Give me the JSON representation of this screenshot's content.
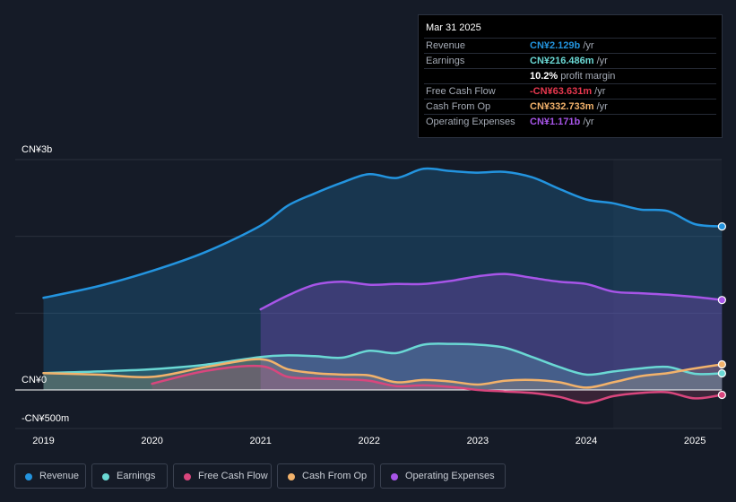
{
  "tooltip": {
    "date": "Mar 31 2025",
    "rows": [
      {
        "label": "Revenue",
        "value": "CN¥2.129b",
        "unit": "/yr",
        "color": "#2394df"
      },
      {
        "label": "Earnings",
        "value": "CN¥216.486m",
        "unit": "/yr",
        "color": "#6ad8d4"
      },
      {
        "label": "",
        "value": "10.2%",
        "unit": "profit margin",
        "color": "#ffffff"
      },
      {
        "label": "Free Cash Flow",
        "value": "-CN¥63.631m",
        "unit": "/yr",
        "color": "#e8384f"
      },
      {
        "label": "Cash From Op",
        "value": "CN¥332.733m",
        "unit": "/yr",
        "color": "#f2b26b"
      },
      {
        "label": "Operating Expenses",
        "value": "CN¥1.171b",
        "unit": "/yr",
        "color": "#a755e8"
      }
    ]
  },
  "legend": [
    {
      "label": "Revenue",
      "color": "#2394df"
    },
    {
      "label": "Earnings",
      "color": "#6ad8d4"
    },
    {
      "label": "Free Cash Flow",
      "color": "#d9467d"
    },
    {
      "label": "Cash From Op",
      "color": "#f2b26b"
    },
    {
      "label": "Operating Expenses",
      "color": "#a755e8"
    }
  ],
  "chart_data": {
    "type": "area",
    "title": "",
    "unit": "CN¥",
    "y_tick_labels": [
      "CN¥3b",
      "CN¥0",
      "-CN¥500m"
    ],
    "y_ticks": [
      3000,
      0,
      -500
    ],
    "ylim": [
      -500,
      3000
    ],
    "x_tick_labels": [
      "2019",
      "2020",
      "2021",
      "2022",
      "2023",
      "2024",
      "2025"
    ],
    "x_ticks": [
      2019,
      2020,
      2021,
      2022,
      2023,
      2024,
      2025
    ],
    "xlim": [
      2018.75,
      2025.25
    ],
    "forecast_start": 2024.25,
    "series": [
      {
        "name": "Revenue",
        "color": "#2394df",
        "points": [
          [
            2019.0,
            1200
          ],
          [
            2019.5,
            1350
          ],
          [
            2020.0,
            1550
          ],
          [
            2020.5,
            1800
          ],
          [
            2021.0,
            2140
          ],
          [
            2021.25,
            2400
          ],
          [
            2021.5,
            2560
          ],
          [
            2021.75,
            2700
          ],
          [
            2022.0,
            2810
          ],
          [
            2022.25,
            2760
          ],
          [
            2022.5,
            2880
          ],
          [
            2022.75,
            2850
          ],
          [
            2023.0,
            2830
          ],
          [
            2023.25,
            2840
          ],
          [
            2023.5,
            2770
          ],
          [
            2023.75,
            2620
          ],
          [
            2024.0,
            2480
          ],
          [
            2024.25,
            2430
          ],
          [
            2024.5,
            2350
          ],
          [
            2024.75,
            2330
          ],
          [
            2025.0,
            2160
          ],
          [
            2025.25,
            2129
          ]
        ]
      },
      {
        "name": "Operating Expenses",
        "color": "#a755e8",
        "points": [
          [
            2021.0,
            1050
          ],
          [
            2021.25,
            1230
          ],
          [
            2021.5,
            1370
          ],
          [
            2021.75,
            1410
          ],
          [
            2022.0,
            1370
          ],
          [
            2022.25,
            1380
          ],
          [
            2022.5,
            1380
          ],
          [
            2022.75,
            1420
          ],
          [
            2023.0,
            1480
          ],
          [
            2023.25,
            1510
          ],
          [
            2023.5,
            1460
          ],
          [
            2023.75,
            1410
          ],
          [
            2024.0,
            1380
          ],
          [
            2024.25,
            1280
          ],
          [
            2024.5,
            1260
          ],
          [
            2024.75,
            1240
          ],
          [
            2025.0,
            1210
          ],
          [
            2025.25,
            1171
          ]
        ]
      },
      {
        "name": "Earnings",
        "color": "#6ad8d4",
        "points": [
          [
            2019.0,
            220
          ],
          [
            2019.5,
            240
          ],
          [
            2020.0,
            270
          ],
          [
            2020.5,
            330
          ],
          [
            2021.0,
            430
          ],
          [
            2021.25,
            450
          ],
          [
            2021.5,
            440
          ],
          [
            2021.75,
            420
          ],
          [
            2022.0,
            510
          ],
          [
            2022.25,
            480
          ],
          [
            2022.5,
            590
          ],
          [
            2022.75,
            600
          ],
          [
            2023.0,
            590
          ],
          [
            2023.25,
            550
          ],
          [
            2023.5,
            430
          ],
          [
            2023.75,
            300
          ],
          [
            2024.0,
            200
          ],
          [
            2024.25,
            240
          ],
          [
            2024.5,
            280
          ],
          [
            2024.75,
            300
          ],
          [
            2025.0,
            210
          ],
          [
            2025.25,
            216
          ]
        ]
      },
      {
        "name": "Cash From Op",
        "color": "#f2b26b",
        "points": [
          [
            2019.0,
            220
          ],
          [
            2019.5,
            200
          ],
          [
            2020.0,
            170
          ],
          [
            2020.5,
            300
          ],
          [
            2021.0,
            400
          ],
          [
            2021.25,
            270
          ],
          [
            2021.5,
            220
          ],
          [
            2021.75,
            200
          ],
          [
            2022.0,
            190
          ],
          [
            2022.25,
            100
          ],
          [
            2022.5,
            130
          ],
          [
            2022.75,
            110
          ],
          [
            2023.0,
            70
          ],
          [
            2023.25,
            120
          ],
          [
            2023.5,
            130
          ],
          [
            2023.75,
            100
          ],
          [
            2024.0,
            30
          ],
          [
            2024.25,
            100
          ],
          [
            2024.5,
            180
          ],
          [
            2024.75,
            220
          ],
          [
            2025.0,
            280
          ],
          [
            2025.25,
            333
          ]
        ]
      },
      {
        "name": "Free Cash Flow",
        "color": "#d9467d",
        "points": [
          [
            2020.0,
            80
          ],
          [
            2020.5,
            250
          ],
          [
            2021.0,
            310
          ],
          [
            2021.25,
            170
          ],
          [
            2021.5,
            150
          ],
          [
            2021.75,
            140
          ],
          [
            2022.0,
            120
          ],
          [
            2022.25,
            50
          ],
          [
            2022.5,
            60
          ],
          [
            2022.75,
            40
          ],
          [
            2023.0,
            0
          ],
          [
            2023.25,
            -20
          ],
          [
            2023.5,
            -40
          ],
          [
            2023.75,
            -90
          ],
          [
            2024.0,
            -170
          ],
          [
            2024.25,
            -80
          ],
          [
            2024.5,
            -40
          ],
          [
            2024.75,
            -30
          ],
          [
            2025.0,
            -110
          ],
          [
            2025.25,
            -64
          ]
        ]
      }
    ]
  }
}
